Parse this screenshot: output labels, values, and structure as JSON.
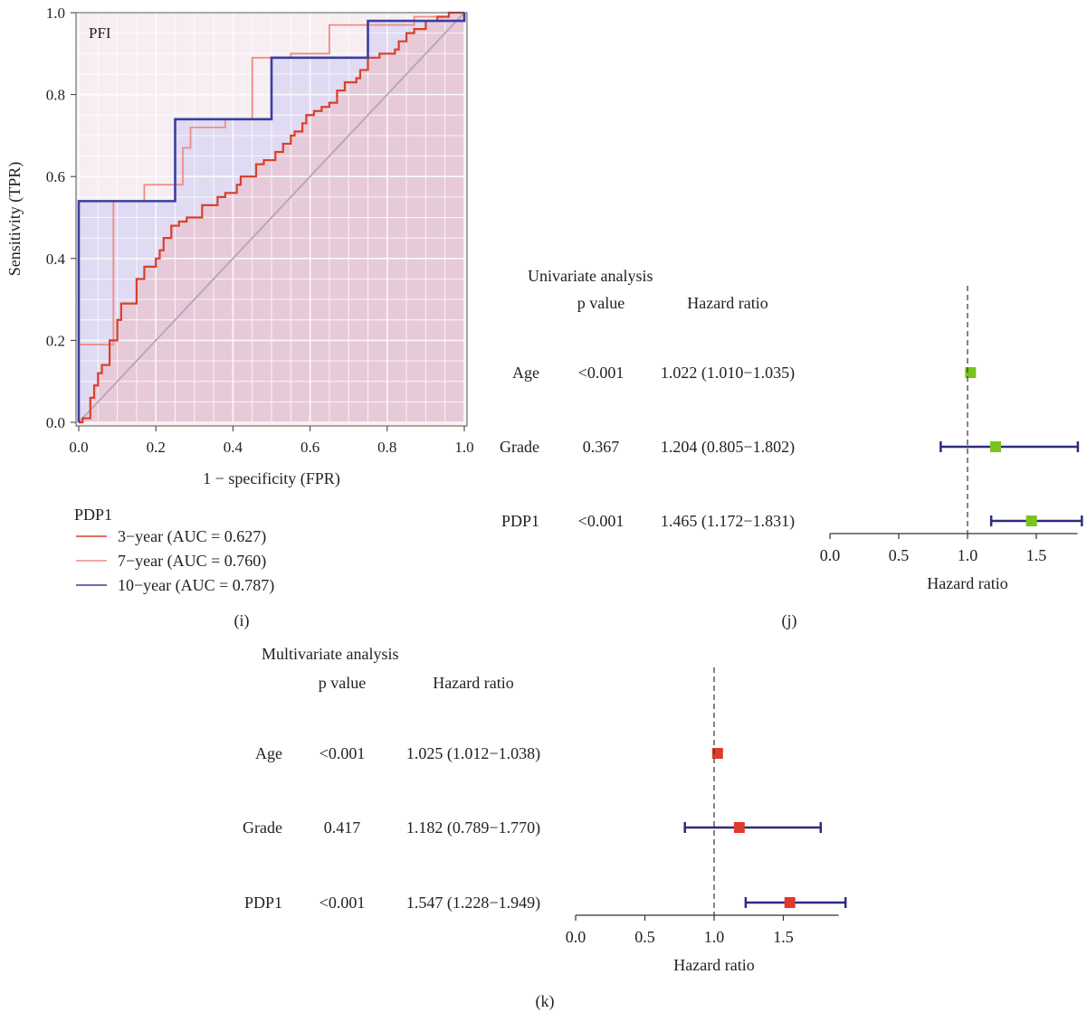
{
  "colors": {
    "year3": "#d8402a",
    "year7": "#f08c86",
    "year10": "#3a3ea0",
    "diagonal": "#b8a8b8",
    "fill_lower": "#e8c8d6",
    "fill_upper": "#dcd6f2",
    "grid": "#ffffff",
    "ci_line": "#2c2c7e",
    "univ_marker": "#7ac41e",
    "multi_marker": "#e03a2a",
    "ref_line": "#333333"
  },
  "chart_data": [
    {
      "id": "roc",
      "type": "line",
      "panel_label": "(i)",
      "inset_label": "PFI",
      "xlabel": "1 − specificity (FPR)",
      "ylabel": "Sensitivity (TPR)",
      "xlim": [
        0,
        1
      ],
      "ylim": [
        0,
        1
      ],
      "xticks": [
        "0.0",
        "0.2",
        "0.4",
        "0.6",
        "0.8",
        "1.0"
      ],
      "yticks": [
        "0.0",
        "0.2",
        "0.4",
        "0.6",
        "0.8",
        "1.0"
      ],
      "grid": true,
      "legend_title": "PDP1",
      "legend_position": "bottom-left",
      "diagonal": true,
      "series": [
        {
          "name": "3−year (AUC = 0.627)",
          "color_key": "year3",
          "points": [
            [
              0,
              0
            ],
            [
              0.01,
              0
            ],
            [
              0.01,
              0.01
            ],
            [
              0.03,
              0.01
            ],
            [
              0.03,
              0.06
            ],
            [
              0.04,
              0.06
            ],
            [
              0.04,
              0.09
            ],
            [
              0.05,
              0.09
            ],
            [
              0.05,
              0.12
            ],
            [
              0.06,
              0.12
            ],
            [
              0.06,
              0.14
            ],
            [
              0.08,
              0.14
            ],
            [
              0.08,
              0.2
            ],
            [
              0.1,
              0.2
            ],
            [
              0.1,
              0.25
            ],
            [
              0.11,
              0.25
            ],
            [
              0.11,
              0.29
            ],
            [
              0.15,
              0.29
            ],
            [
              0.15,
              0.35
            ],
            [
              0.17,
              0.35
            ],
            [
              0.17,
              0.38
            ],
            [
              0.2,
              0.38
            ],
            [
              0.2,
              0.4
            ],
            [
              0.21,
              0.4
            ],
            [
              0.21,
              0.42
            ],
            [
              0.22,
              0.42
            ],
            [
              0.22,
              0.45
            ],
            [
              0.24,
              0.45
            ],
            [
              0.24,
              0.48
            ],
            [
              0.26,
              0.48
            ],
            [
              0.26,
              0.49
            ],
            [
              0.28,
              0.49
            ],
            [
              0.28,
              0.5
            ],
            [
              0.32,
              0.5
            ],
            [
              0.32,
              0.53
            ],
            [
              0.36,
              0.53
            ],
            [
              0.36,
              0.55
            ],
            [
              0.38,
              0.55
            ],
            [
              0.38,
              0.56
            ],
            [
              0.41,
              0.56
            ],
            [
              0.41,
              0.58
            ],
            [
              0.42,
              0.58
            ],
            [
              0.42,
              0.6
            ],
            [
              0.46,
              0.6
            ],
            [
              0.46,
              0.63
            ],
            [
              0.48,
              0.63
            ],
            [
              0.48,
              0.64
            ],
            [
              0.51,
              0.64
            ],
            [
              0.51,
              0.66
            ],
            [
              0.53,
              0.66
            ],
            [
              0.53,
              0.68
            ],
            [
              0.55,
              0.68
            ],
            [
              0.55,
              0.7
            ],
            [
              0.56,
              0.7
            ],
            [
              0.56,
              0.71
            ],
            [
              0.58,
              0.71
            ],
            [
              0.58,
              0.73
            ],
            [
              0.59,
              0.73
            ],
            [
              0.59,
              0.75
            ],
            [
              0.61,
              0.75
            ],
            [
              0.61,
              0.76
            ],
            [
              0.63,
              0.76
            ],
            [
              0.63,
              0.77
            ],
            [
              0.65,
              0.77
            ],
            [
              0.65,
              0.78
            ],
            [
              0.67,
              0.78
            ],
            [
              0.67,
              0.81
            ],
            [
              0.69,
              0.81
            ],
            [
              0.69,
              0.83
            ],
            [
              0.72,
              0.83
            ],
            [
              0.72,
              0.84
            ],
            [
              0.73,
              0.84
            ],
            [
              0.73,
              0.86
            ],
            [
              0.75,
              0.86
            ],
            [
              0.75,
              0.89
            ],
            [
              0.78,
              0.89
            ],
            [
              0.78,
              0.9
            ],
            [
              0.82,
              0.9
            ],
            [
              0.82,
              0.91
            ],
            [
              0.83,
              0.91
            ],
            [
              0.83,
              0.93
            ],
            [
              0.85,
              0.93
            ],
            [
              0.85,
              0.95
            ],
            [
              0.87,
              0.95
            ],
            [
              0.87,
              0.96
            ],
            [
              0.9,
              0.96
            ],
            [
              0.9,
              0.98
            ],
            [
              0.93,
              0.98
            ],
            [
              0.93,
              0.99
            ],
            [
              0.96,
              0.99
            ],
            [
              0.96,
              1.0
            ],
            [
              1.0,
              1.0
            ]
          ]
        },
        {
          "name": "7−year (AUC = 0.760)",
          "color_key": "year7",
          "points": [
            [
              0,
              0
            ],
            [
              0,
              0.19
            ],
            [
              0.09,
              0.19
            ],
            [
              0.09,
              0.54
            ],
            [
              0.17,
              0.54
            ],
            [
              0.17,
              0.58
            ],
            [
              0.27,
              0.58
            ],
            [
              0.27,
              0.67
            ],
            [
              0.29,
              0.67
            ],
            [
              0.29,
              0.72
            ],
            [
              0.38,
              0.72
            ],
            [
              0.38,
              0.74
            ],
            [
              0.45,
              0.74
            ],
            [
              0.45,
              0.89
            ],
            [
              0.55,
              0.89
            ],
            [
              0.55,
              0.9
            ],
            [
              0.65,
              0.9
            ],
            [
              0.65,
              0.97
            ],
            [
              0.87,
              0.97
            ],
            [
              0.87,
              0.99
            ],
            [
              0.96,
              0.99
            ],
            [
              0.96,
              1.0
            ],
            [
              1.0,
              1.0
            ]
          ]
        },
        {
          "name": "10−year (AUC = 0.787)",
          "color_key": "year10",
          "points": [
            [
              0,
              0
            ],
            [
              0,
              0.54
            ],
            [
              0.25,
              0.54
            ],
            [
              0.25,
              0.74
            ],
            [
              0.5,
              0.74
            ],
            [
              0.5,
              0.89
            ],
            [
              0.75,
              0.89
            ],
            [
              0.75,
              0.98
            ],
            [
              1.0,
              0.98
            ],
            [
              1.0,
              1.0
            ]
          ]
        }
      ]
    },
    {
      "id": "univariate",
      "type": "forest",
      "panel_label": "(j)",
      "title": "Univariate analysis",
      "col_pvalue": "p value",
      "col_hr": "Hazard ratio",
      "xlabel": "Hazard ratio",
      "xlim": [
        0.0,
        1.8
      ],
      "xticks": [
        "0.0",
        "0.5",
        "1.0",
        "1.5"
      ],
      "ref_line": 1.0,
      "marker_color_key": "univ_marker",
      "rows": [
        {
          "label": "Age",
          "p": "<0.001",
          "hr_text": "1.022 (1.010−1.035)",
          "hr": 1.022,
          "lo": 1.01,
          "hi": 1.035
        },
        {
          "label": "Grade",
          "p": "0.367",
          "hr_text": "1.204 (0.805−1.802)",
          "hr": 1.204,
          "lo": 0.805,
          "hi": 1.802
        },
        {
          "label": "PDP1",
          "p": "<0.001",
          "hr_text": "1.465 (1.172−1.831)",
          "hr": 1.465,
          "lo": 1.172,
          "hi": 1.831
        }
      ]
    },
    {
      "id": "multivariate",
      "type": "forest",
      "panel_label": "(k)",
      "title": "Multivariate analysis",
      "col_pvalue": "p value",
      "col_hr": "Hazard ratio",
      "xlabel": "Hazard ratio",
      "xlim": [
        0.0,
        1.9
      ],
      "xticks": [
        "0.0",
        "0.5",
        "1.0",
        "1.5"
      ],
      "ref_line": 1.0,
      "marker_color_key": "multi_marker",
      "rows": [
        {
          "label": "Age",
          "p": "<0.001",
          "hr_text": "1.025 (1.012−1.038)",
          "hr": 1.025,
          "lo": 1.012,
          "hi": 1.038
        },
        {
          "label": "Grade",
          "p": "0.417",
          "hr_text": "1.182 (0.789−1.770)",
          "hr": 1.182,
          "lo": 0.789,
          "hi": 1.77
        },
        {
          "label": "PDP1",
          "p": "<0.001",
          "hr_text": "1.547 (1.228−1.949)",
          "hr": 1.547,
          "lo": 1.228,
          "hi": 1.949
        }
      ]
    }
  ]
}
